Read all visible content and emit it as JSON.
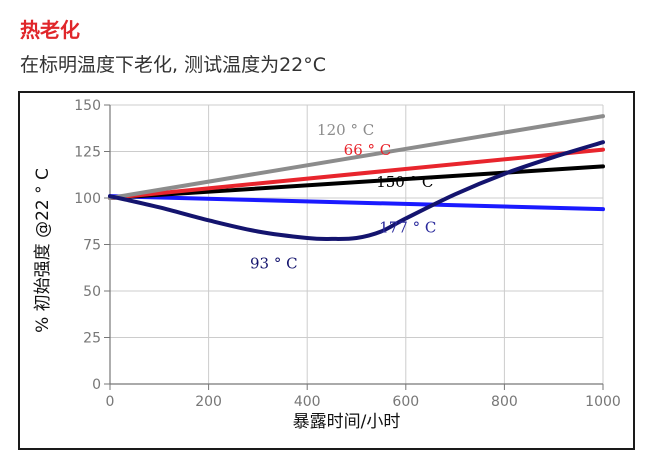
{
  "heading": "热老化",
  "subheading": "在标明温度下老化, 测试温度为22°C",
  "chart_data": {
    "type": "line",
    "title": "",
    "xlabel": "暴露时间/小时",
    "ylabel": "% 初始强度  @22 ° C",
    "xlim": [
      0,
      1000
    ],
    "ylim": [
      0,
      150
    ],
    "xticks": [
      0,
      200,
      400,
      600,
      800,
      1000
    ],
    "yticks": [
      0,
      25,
      50,
      75,
      100,
      125,
      150
    ],
    "grid": true,
    "series": [
      {
        "name": "120 ° C",
        "color": "#8c8c8c",
        "label_color": "#8c8c8c",
        "x": [
          0,
          1000
        ],
        "y": [
          100,
          144
        ]
      },
      {
        "name": "66 ° C",
        "color": "#e8252d",
        "label_color": "#e8252d",
        "x": [
          0,
          1000
        ],
        "y": [
          100,
          126
        ]
      },
      {
        "name": "150 ° C",
        "color": "#000000",
        "label_color": "#000000",
        "x": [
          0,
          1000
        ],
        "y": [
          100,
          117
        ]
      },
      {
        "name": "177 ° C",
        "color": "#1a1aff",
        "label_color": "#2a2a9c",
        "x": [
          0,
          1000
        ],
        "y": [
          101,
          94
        ]
      },
      {
        "name": "93 ° C",
        "color": "#14146e",
        "label_color": "#14146e",
        "x": [
          0,
          100,
          200,
          300,
          400,
          450,
          500,
          550,
          600,
          700,
          800,
          900,
          1000
        ],
        "y": [
          101,
          95,
          88,
          82,
          78.5,
          78,
          78.5,
          82,
          89,
          102,
          113,
          122,
          130
        ]
      }
    ]
  }
}
